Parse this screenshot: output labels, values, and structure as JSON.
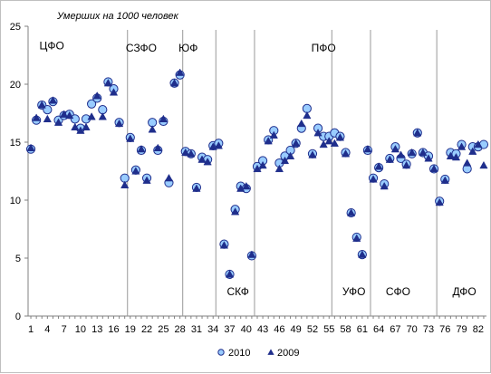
{
  "chart_data": {
    "type": "scatter",
    "ylabel": "Умерших на 1000 человек",
    "ylim": [
      0,
      25
    ],
    "yticks": [
      "0",
      "5",
      "10",
      "15",
      "20",
      "25"
    ],
    "xlim": [
      0.5,
      83.5
    ],
    "xticks": [
      "1",
      "4",
      "7",
      "10",
      "13",
      "16",
      "19",
      "22",
      "25",
      "28",
      "31",
      "34",
      "37",
      "40",
      "43",
      "46",
      "49",
      "52",
      "55",
      "58",
      "61",
      "64",
      "67",
      "70",
      "73",
      "76",
      "79",
      "82"
    ],
    "grid": "none",
    "legend_position": "bottom-center",
    "region_labels": [
      {
        "text": "ЦФО",
        "x": 4.8,
        "y": 23.0
      },
      {
        "text": "СЗФО",
        "x": 21.0,
        "y": 22.8
      },
      {
        "text": "ЮФ",
        "x": 29.5,
        "y": 22.8
      },
      {
        "text": "ПФО",
        "x": 54.0,
        "y": 22.8
      },
      {
        "text": "СКФ",
        "x": 38.5,
        "y": 1.8
      },
      {
        "text": "УФО",
        "x": 59.5,
        "y": 1.8
      },
      {
        "text": "СФО",
        "x": 67.5,
        "y": 1.8
      },
      {
        "text": "ДФО",
        "x": 79.5,
        "y": 1.8
      }
    ],
    "region_separators": [
      18,
      28,
      34,
      41,
      55,
      62,
      74
    ],
    "series": [
      {
        "name": "2010",
        "marker": "circle",
        "color": "#99CCFF",
        "values": [
          14.4,
          16.9,
          18.2,
          17.8,
          18.5,
          16.9,
          17.3,
          17.4,
          17.0,
          16.2,
          17.0,
          18.3,
          18.8,
          17.8,
          20.2,
          19.6,
          16.7,
          11.9,
          15.4,
          12.6,
          14.3,
          11.9,
          16.7,
          14.3,
          16.8,
          11.5,
          20.1,
          20.8,
          14.2,
          14.0,
          11.1,
          13.7,
          13.5,
          14.7,
          14.9,
          6.2,
          3.6,
          9.2,
          11.2,
          11.0,
          5.2,
          12.9,
          13.4,
          15.2,
          16.0,
          13.2,
          13.8,
          14.3,
          14.9,
          16.2,
          17.9,
          14.0,
          16.2,
          15.5,
          15.5,
          15.8,
          15.5,
          14.1,
          8.9,
          6.8,
          5.3,
          14.3,
          11.9,
          12.8,
          11.4,
          13.6,
          14.6,
          13.6,
          13.1,
          14.0,
          15.8,
          14.1,
          13.8,
          12.7,
          9.9,
          11.8,
          14.1,
          14.0,
          14.8,
          12.7,
          14.6,
          14.6,
          14.8
        ]
      },
      {
        "name": "2009",
        "marker": "triangle",
        "color": "#1F2E8C",
        "values": [
          14.5,
          17.1,
          18.2,
          17.0,
          18.6,
          16.7,
          17.4,
          17.3,
          16.3,
          16.0,
          16.3,
          17.2,
          19.0,
          17.2,
          20.1,
          19.3,
          16.6,
          11.3,
          15.3,
          12.5,
          14.4,
          11.7,
          16.1,
          14.5,
          17.0,
          11.9,
          20.1,
          21.0,
          14.1,
          14.0,
          11.0,
          13.5,
          13.3,
          14.6,
          14.7,
          6.1,
          3.6,
          9.0,
          11.0,
          11.2,
          5.3,
          12.7,
          13.0,
          15.1,
          15.6,
          12.7,
          13.4,
          13.8,
          14.9,
          16.6,
          17.3,
          13.9,
          15.8,
          14.8,
          15.1,
          14.9,
          15.4,
          14.0,
          8.9,
          6.7,
          5.3,
          14.4,
          11.8,
          12.9,
          11.2,
          13.5,
          14.4,
          13.9,
          13.0,
          14.1,
          15.8,
          14.1,
          13.6,
          12.7,
          9.8,
          11.7,
          13.8,
          13.7,
          14.6,
          13.2,
          14.2,
          14.8,
          13.0
        ]
      }
    ]
  }
}
